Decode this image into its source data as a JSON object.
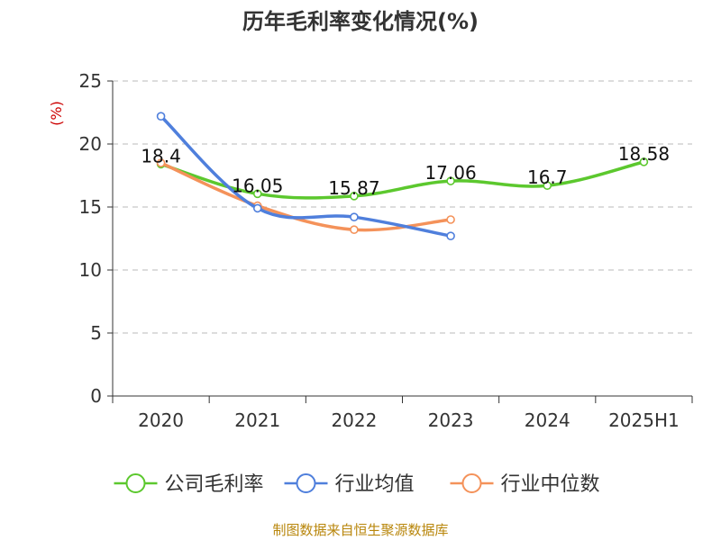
{
  "chart_data": {
    "type": "line",
    "title": "历年毛利率变化情况(%)",
    "y_unit": "(%)",
    "categories": [
      "2020",
      "2021",
      "2022",
      "2023",
      "2024",
      "2025H1"
    ],
    "ylim": [
      0,
      25
    ],
    "yticks": [
      0,
      5,
      10,
      15,
      20,
      25
    ],
    "grid": true,
    "legend_position": "bottom",
    "series": [
      {
        "name": "公司毛利率",
        "color": "#5cc82e",
        "values": [
          18.4,
          16.05,
          15.87,
          17.06,
          16.7,
          18.58
        ],
        "show_labels": true
      },
      {
        "name": "行业均值",
        "color": "#4f7fdc",
        "values": [
          22.2,
          14.9,
          14.2,
          12.7,
          null,
          null
        ],
        "show_labels": false
      },
      {
        "name": "行业中位数",
        "color": "#f4925a",
        "values": [
          18.5,
          15.1,
          13.2,
          14.0,
          null,
          null
        ],
        "show_labels": false
      }
    ],
    "data_labels": [
      "18.4",
      "16.05",
      "15.87",
      "17.06",
      "16.7",
      "18.58"
    ],
    "source": "制图数据来自恒生聚源数据库"
  }
}
